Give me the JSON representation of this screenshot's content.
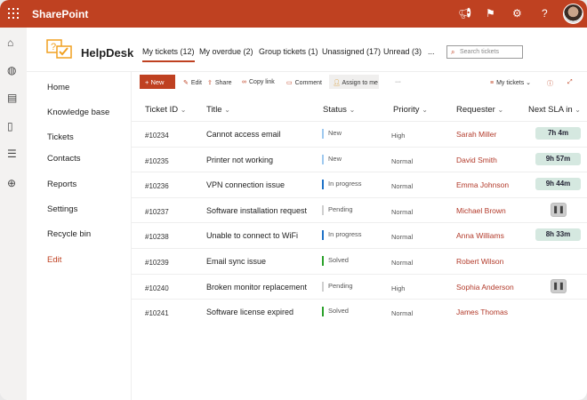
{
  "app": {
    "title": "SharePoint",
    "site": "HelpDesk",
    "accent": "#bf4121"
  },
  "topbar_icons": [
    "megaphone-icon",
    "feedback-icon",
    "gear-icon",
    "help-icon"
  ],
  "tabs": [
    {
      "label": "My tickets (12)",
      "active": true
    },
    {
      "label": "My overdue (2)"
    },
    {
      "label": "Group tickets (1)"
    },
    {
      "label": "Unassigned (17)"
    },
    {
      "label": "Unread (3)"
    },
    {
      "label": "..."
    }
  ],
  "search": {
    "placeholder": "Search tickets"
  },
  "nav": [
    "Home",
    "Knowledge base",
    "Tickets",
    "Contacts",
    "Reports",
    "Settings",
    "Recycle bin",
    "Edit"
  ],
  "toolbar": {
    "new": "New",
    "edit": "Edit",
    "share": "Share",
    "copy": "Copy link",
    "comment": "Comment",
    "assign": "Assign to me",
    "more": "···",
    "view": "My tickets"
  },
  "columns": [
    "Ticket ID",
    "Title",
    "Status",
    "Priority",
    "Requester",
    "Next SLA in"
  ],
  "status_colors": {
    "New": "#9fc9ef",
    "In progress": "#1f72c7",
    "Pending": "#cfcfcf",
    "Solved": "#2aa12a"
  },
  "rows": [
    {
      "id": "#10234",
      "title": "Cannot access email",
      "status": "New",
      "priority": "High",
      "requester": "Sarah Miller",
      "sla": "7h 4m"
    },
    {
      "id": "#10235",
      "title": "Printer not working",
      "status": "New",
      "priority": "Normal",
      "requester": "David Smith",
      "sla": "9h 57m"
    },
    {
      "id": "#10236",
      "title": "VPN connection issue",
      "status": "In progress",
      "priority": "Normal",
      "requester": "Emma Johnson",
      "sla": "9h 44m"
    },
    {
      "id": "#10237",
      "title": "Software installation request",
      "status": "Pending",
      "priority": "Normal",
      "requester": "Michael Brown",
      "sla": "paused"
    },
    {
      "id": "#10238",
      "title": "Unable to connect to WiFi",
      "status": "In progress",
      "priority": "Normal",
      "requester": "Anna Williams",
      "sla": "8h 33m"
    },
    {
      "id": "#10239",
      "title": "Email sync issue",
      "status": "Solved",
      "priority": "Normal",
      "requester": "Robert Wilson",
      "sla": ""
    },
    {
      "id": "#10240",
      "title": "Broken monitor replacement",
      "status": "Pending",
      "priority": "High",
      "requester": "Sophia Anderson",
      "sla": "paused"
    },
    {
      "id": "#10241",
      "title": "Software license expired",
      "status": "Solved",
      "priority": "Normal",
      "requester": "James Thomas",
      "sla": ""
    }
  ]
}
